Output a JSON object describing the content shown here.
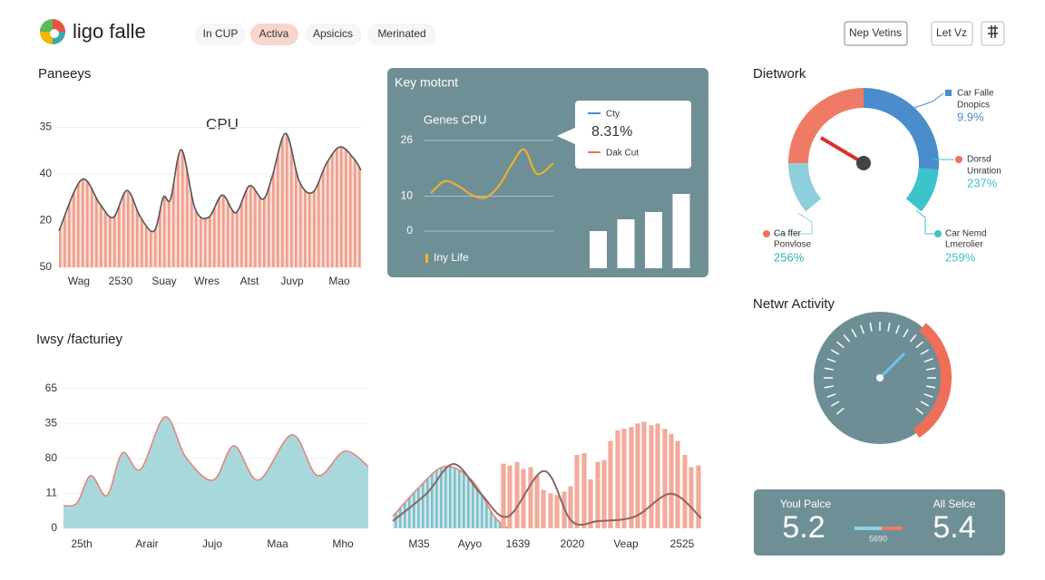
{
  "header": {
    "logo": "ligo falle",
    "tabs": [
      "In CUP",
      "Activa",
      "Apsicics",
      "Merinated"
    ],
    "buttons": [
      "Nep Vetins",
      "Let Vz"
    ]
  },
  "cpu_panel": {
    "heading": "Paneeys",
    "chart": {
      "type": "area",
      "title": "CPU",
      "grid": true,
      "xlim": [
        0,
        335
      ],
      "ylim": [
        1,
        4.3
      ],
      "yticks": [
        {
          "value": 4,
          "label": "35"
        },
        {
          "value": 3,
          "label": "40"
        },
        {
          "value": 2,
          "label": "20"
        },
        {
          "value": 1,
          "label": "50"
        }
      ],
      "xticks": [
        {
          "value": 24,
          "label": "Wag"
        },
        {
          "value": 70,
          "label": "2530"
        },
        {
          "value": 118,
          "label": "Suay"
        },
        {
          "value": 165,
          "label": "Wres"
        },
        {
          "value": 212,
          "label": "Atst"
        },
        {
          "value": 259,
          "label": "Juvp"
        },
        {
          "value": 311,
          "label": "Mao"
        }
      ],
      "series": [
        {
          "type": "area",
          "pattern": "stripes",
          "color": "#ef9f8d",
          "line_color": "#555555",
          "x": [
            2,
            27,
            47,
            62,
            77,
            92,
            107,
            117,
            125,
            137,
            152,
            167,
            182,
            197,
            212,
            227,
            237,
            252,
            267,
            282,
            297,
            312,
            327,
            335
          ],
          "values": [
            1.78,
            2.88,
            2.36,
            2.07,
            2.65,
            2.07,
            1.78,
            2.5,
            2.46,
            3.52,
            2.26,
            2.07,
            2.55,
            2.17,
            2.75,
            2.46,
            2.94,
            3.87,
            2.84,
            2.61,
            3.23,
            3.58,
            3.33,
            3.08
          ]
        }
      ]
    }
  },
  "key_panel": {
    "heading": "Key motcnt",
    "chart": {
      "type": "line",
      "title": "Genes CPU",
      "grid": true,
      "xlim": [
        0,
        135
      ],
      "ylim": [
        0,
        26
      ],
      "yticks": [
        26,
        10,
        0
      ],
      "series": [
        {
          "type": "line",
          "color": "#f0b429",
          "x": [
            0,
            15,
            30,
            45,
            60,
            75,
            90,
            103,
            117,
            135
          ],
          "values": [
            10.9,
            14.3,
            13,
            10.4,
            9.6,
            13,
            19.5,
            23.4,
            16.4,
            19.5
          ]
        }
      ],
      "bars": {
        "color": "#ffffff",
        "ylim": [
          0,
          100
        ],
        "values": [
          41,
          54,
          62,
          82
        ]
      },
      "legend": "Iny Life"
    },
    "tooltip": {
      "series": [
        "Cty",
        "Dak Cut"
      ],
      "value": "8.31%"
    }
  },
  "network_panel": {
    "heading": "Dietwork",
    "labels": [
      {
        "name": "Car Falle",
        "sub": "Dnopics",
        "value": "9.9%"
      },
      {
        "name": "Dorsd",
        "sub": "Unration",
        "value": "237%"
      },
      {
        "name": "Ca ffer",
        "sub": "Ponvlose",
        "value": "256%"
      },
      {
        "name": "Car Nemd",
        "sub": "Lmerolier",
        "value": "259%"
      }
    ]
  },
  "activity_panel": {
    "heading": "Netwr Activity"
  },
  "factory_panel": {
    "heading": "Iwsy /facturiey",
    "charts": [
      {
        "type": "area",
        "grid": true,
        "xlim": [
          0,
          336
        ],
        "ylim": [
          0,
          4.2
        ],
        "yticks": [
          {
            "value": 4,
            "label": "65"
          },
          {
            "value": 3,
            "label": "35"
          },
          {
            "value": 2,
            "label": "80"
          },
          {
            "value": 1,
            "label": "11"
          },
          0
        ],
        "xticks": [
          {
            "value": 20,
            "label": "25th"
          },
          {
            "value": 92,
            "label": "Arair"
          },
          {
            "value": 164,
            "label": "Jujo"
          },
          {
            "value": 236,
            "label": "Maa"
          },
          {
            "value": 308,
            "label": "Mho"
          }
        ],
        "series": [
          {
            "type": "area",
            "color": "#a9d8dc",
            "line_color": "#e0887a",
            "x": [
              0,
              15,
              30,
              48,
              65,
              85,
              112,
              135,
              165,
              188,
              215,
              252,
              280,
              310,
              336
            ],
            "values": [
              0.65,
              0.73,
              1.51,
              0.94,
              2.16,
              1.69,
              3.19,
              2.03,
              1.38,
              2.36,
              1.38,
              2.68,
              1.51,
              2.21,
              1.77
            ]
          }
        ]
      },
      {
        "type": "combo",
        "grid": true,
        "xlim": [
          0,
          340
        ],
        "ylim": [
          0,
          4.2
        ],
        "xticks": [
          {
            "value": 29,
            "label": "M35"
          },
          {
            "value": 85,
            "label": "Ayyo"
          },
          {
            "value": 138,
            "label": "1639"
          },
          {
            "value": 198,
            "label": "2020"
          },
          {
            "value": 257,
            "label": "Veap"
          },
          {
            "value": 319,
            "label": "2525"
          }
        ],
        "series": [
          {
            "type": "area",
            "pattern": "stripes",
            "color": "#7fc0c9",
            "line_color": "#e0887a",
            "x": [
              0,
              27,
              57,
              87,
              112,
              127
            ],
            "values": [
              0.34,
              1.12,
              1.77,
              1.38,
              0.34,
              0
            ]
          },
          {
            "type": "bar",
            "color": "#f2ab9b",
            "x": [
              122,
              129,
              137,
              144,
              152,
              159,
              166,
              174,
              181,
              189,
              196,
              203,
              211,
              218,
              226,
              233,
              240,
              248,
              255,
              263,
              270,
              277,
              285,
              292,
              300,
              307,
              314,
              322,
              329,
              337
            ],
            "values": [
              1.85,
              1.8,
              1.9,
              1.7,
              1.75,
              1.5,
              1.1,
              1.0,
              0.95,
              1.05,
              1.2,
              2.1,
              2.15,
              1.4,
              1.9,
              1.95,
              2.5,
              2.8,
              2.85,
              2.9,
              3.0,
              3.05,
              2.95,
              3.0,
              2.85,
              2.7,
              2.5,
              2.1,
              1.75,
              1.8
            ]
          },
          {
            "type": "line",
            "color": "#8a6464",
            "x": [
              0,
              37,
              67,
              97,
              127,
              167,
              197,
              227,
              267,
              307,
              340
            ],
            "values": [
              0.21,
              0.99,
              1.84,
              0.99,
              0.34,
              1.64,
              0.21,
              0.21,
              0.34,
              0.99,
              0.29
            ]
          }
        ]
      }
    ]
  },
  "score_card": {
    "left_label": "Youl Palce",
    "left_value": 5.2,
    "right_label": "All Selce",
    "right_value": 5.4,
    "slider_label": "5690"
  }
}
